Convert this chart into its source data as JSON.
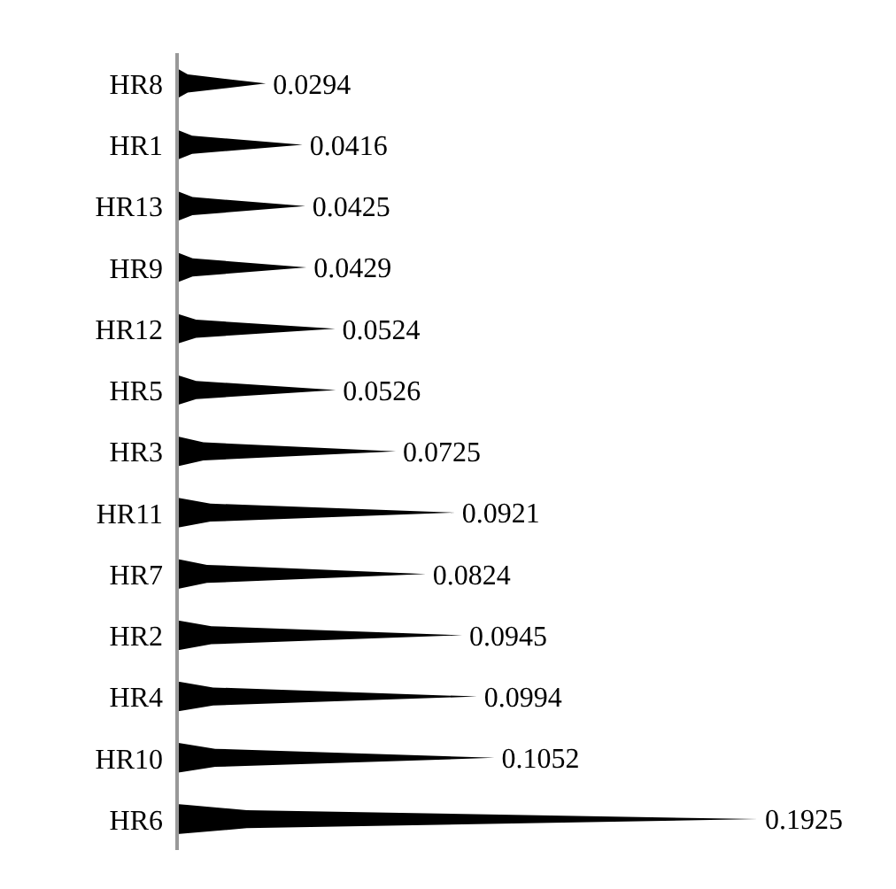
{
  "chart_data": {
    "type": "bar",
    "orientation": "horizontal",
    "data_labels": true,
    "color": "#000000",
    "categories": [
      "HR8",
      "HR1",
      "HR13",
      "HR9",
      "HR12",
      "HR5",
      "HR3",
      "HR11",
      "HR7",
      "HR2",
      "HR4",
      "HR10",
      "HR6"
    ],
    "values": [
      0.0294,
      0.0416,
      0.0425,
      0.0429,
      0.0524,
      0.0526,
      0.0725,
      0.0921,
      0.0824,
      0.0945,
      0.0994,
      0.1052,
      0.1925
    ]
  }
}
